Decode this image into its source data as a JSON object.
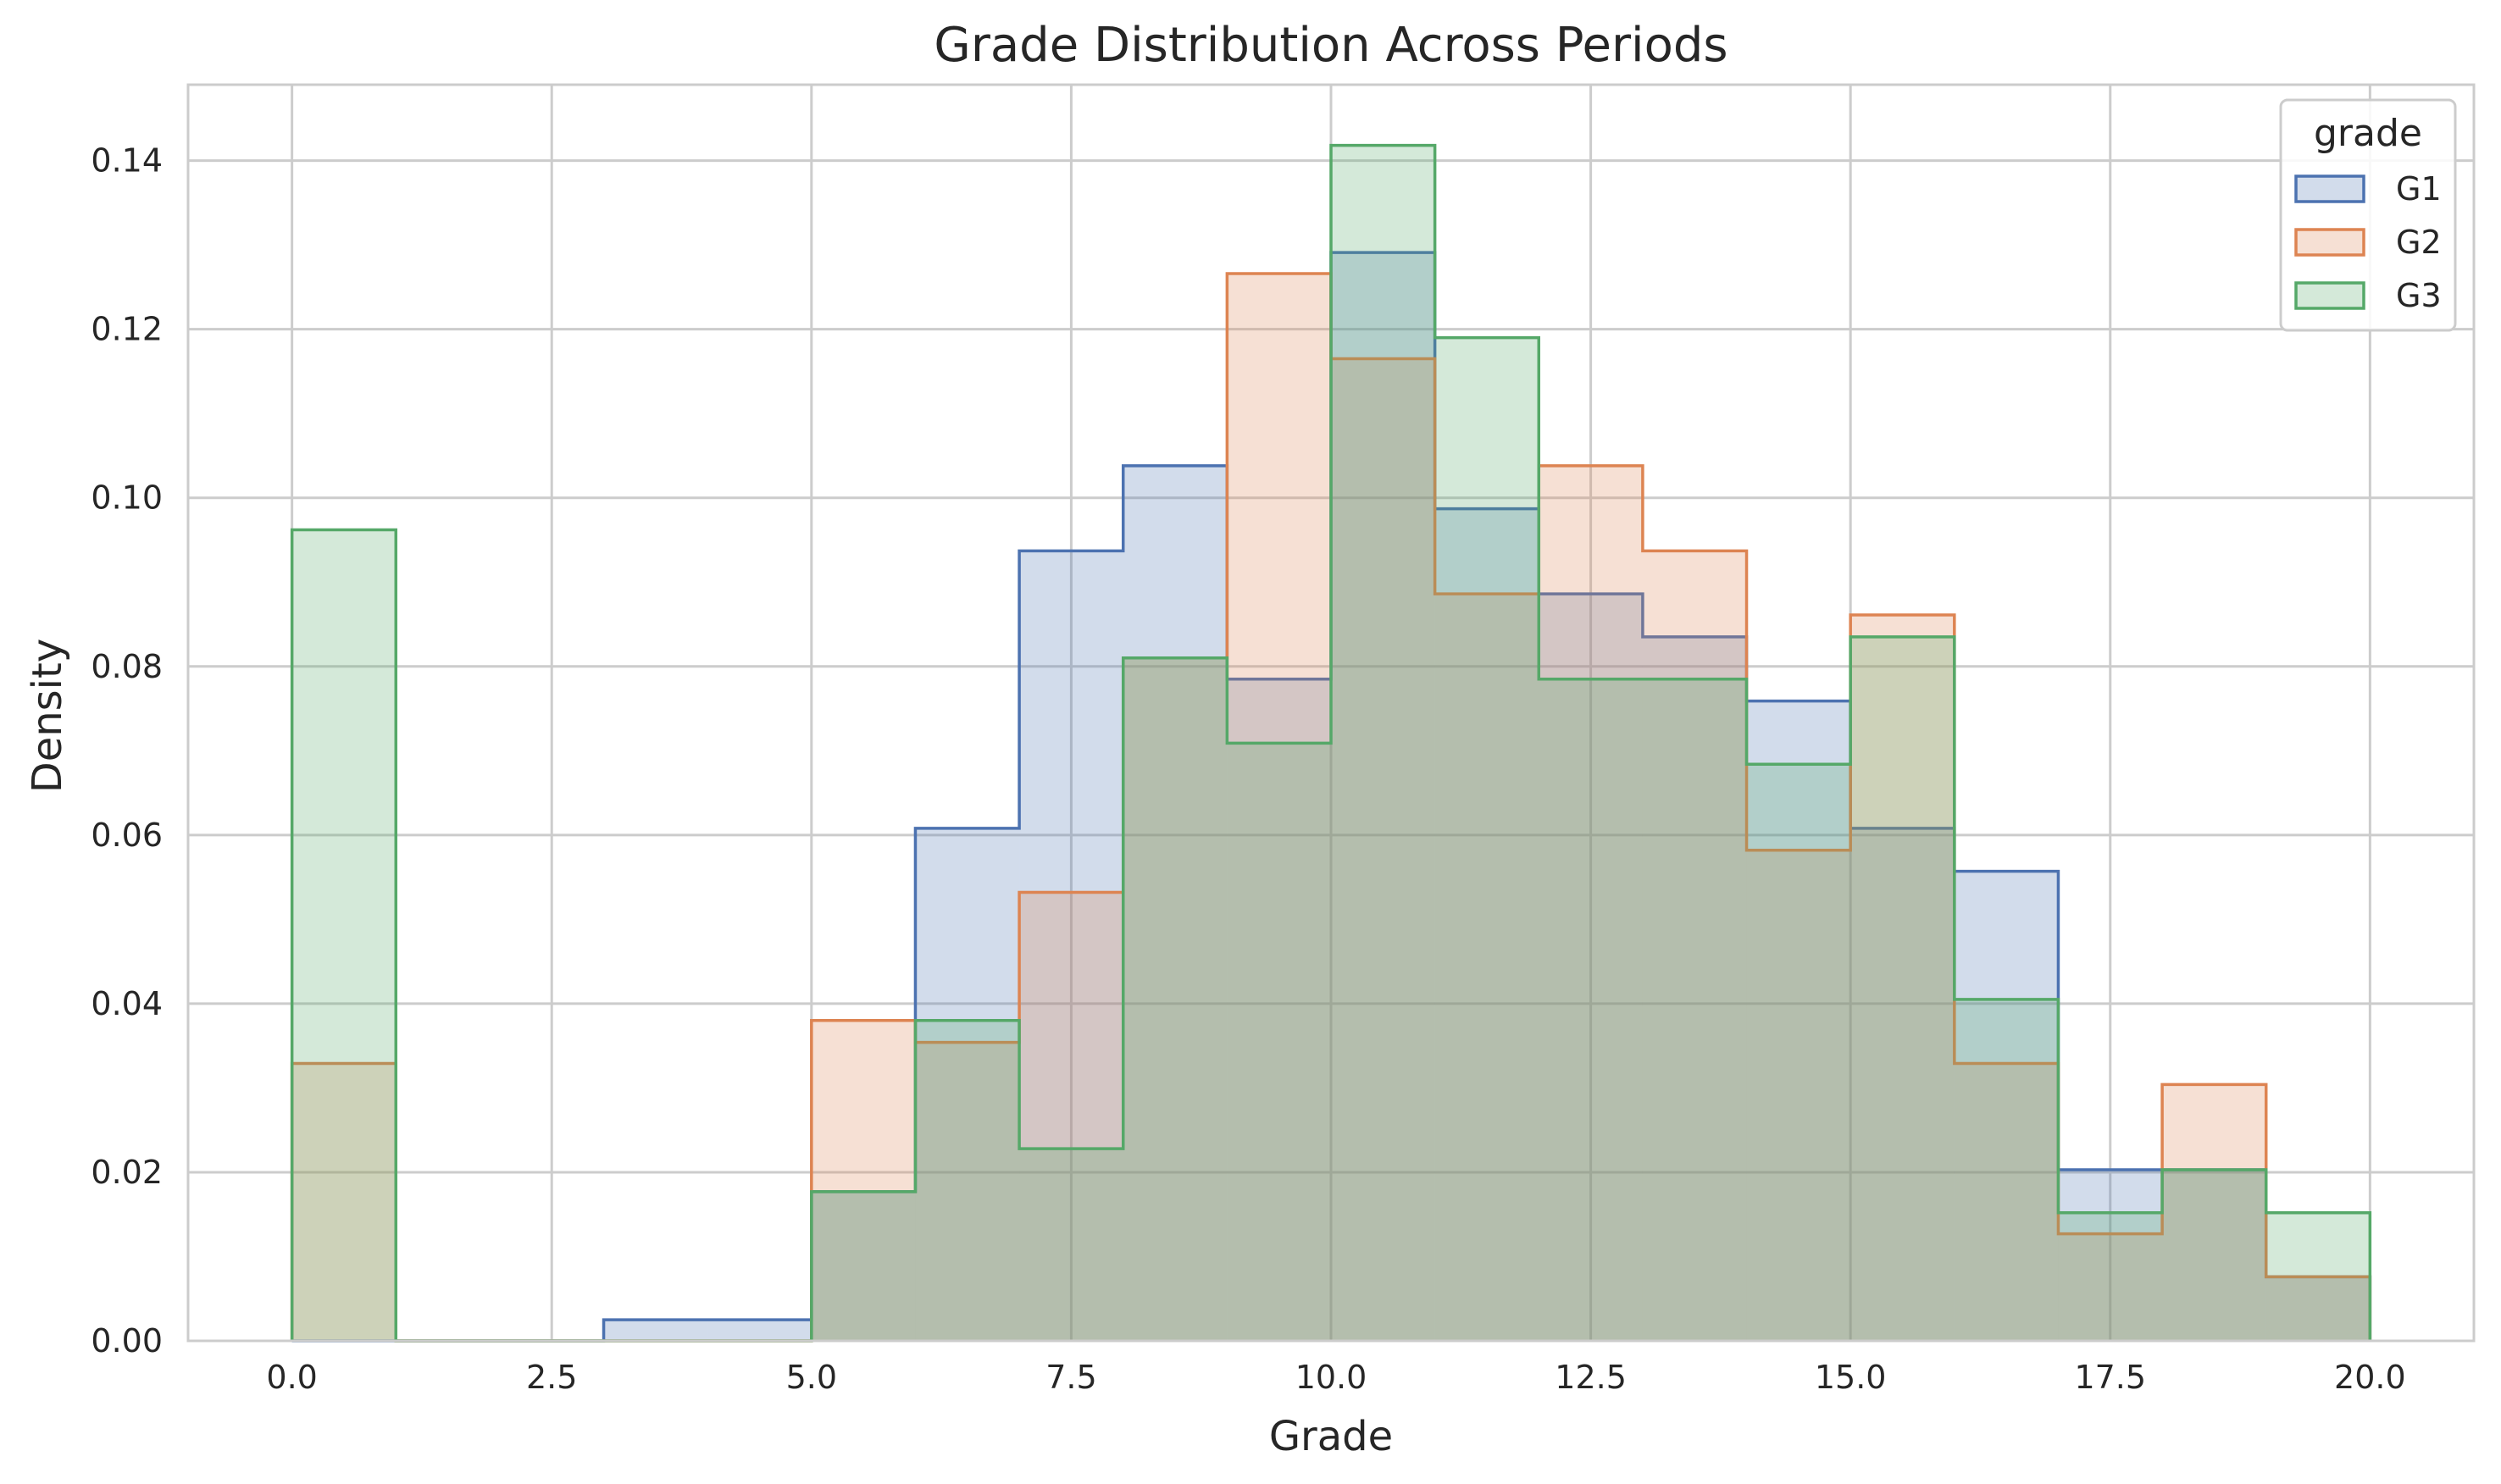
{
  "chart_data": {
    "type": "histogram",
    "title": "Grade Distribution Across Periods",
    "xlabel": "Grade",
    "ylabel": "Density",
    "xlim": [
      -1,
      21
    ],
    "ylim": [
      0,
      0.149
    ],
    "x_ticks": [
      0.0,
      2.5,
      5.0,
      7.5,
      10.0,
      12.5,
      15.0,
      17.5,
      20.0
    ],
    "x_tick_labels": [
      "0.0",
      "2.5",
      "5.0",
      "7.5",
      "10.0",
      "12.5",
      "15.0",
      "17.5",
      "20.0"
    ],
    "y_ticks": [
      0.0,
      0.02,
      0.04,
      0.06,
      0.08,
      0.1,
      0.12,
      0.14
    ],
    "y_tick_labels": [
      "0.00",
      "0.02",
      "0.04",
      "0.06",
      "0.08",
      "0.10",
      "0.12",
      "0.14"
    ],
    "grid": true,
    "bin_edges": [
      0,
      1,
      2,
      3,
      4,
      5,
      6,
      7,
      8,
      9,
      10,
      11,
      12,
      13,
      14,
      15,
      16,
      17,
      18,
      19,
      20
    ],
    "series": [
      {
        "name": "G1",
        "color": "#4c72b0",
        "values": [
          0.0,
          0.0,
          0.0,
          0.0025,
          0.0025,
          0.0177,
          0.0608,
          0.0937,
          0.1038,
          0.0785,
          0.1291,
          0.0987,
          0.0886,
          0.0835,
          0.0759,
          0.0608,
          0.0557,
          0.0203,
          0.0203,
          0.0076
        ]
      },
      {
        "name": "G2",
        "color": "#dd8452",
        "values": [
          0.0329,
          0.0,
          0.0,
          0.0,
          0.0,
          0.038,
          0.0354,
          0.0532,
          0.081,
          0.1266,
          0.1165,
          0.0886,
          0.1038,
          0.0937,
          0.0582,
          0.0861,
          0.0329,
          0.0127,
          0.0304,
          0.0076
        ]
      },
      {
        "name": "G3",
        "color": "#55a868",
        "values": [
          0.0962,
          0.0,
          0.0,
          0.0,
          0.0,
          0.0177,
          0.038,
          0.0228,
          0.081,
          0.0709,
          0.1418,
          0.119,
          0.0785,
          0.0785,
          0.0684,
          0.0835,
          0.0405,
          0.0152,
          0.0203,
          0.0152
        ]
      }
    ],
    "legend": {
      "title": "grade",
      "position": "top-right",
      "entries": [
        "G1",
        "G2",
        "G3"
      ]
    }
  }
}
